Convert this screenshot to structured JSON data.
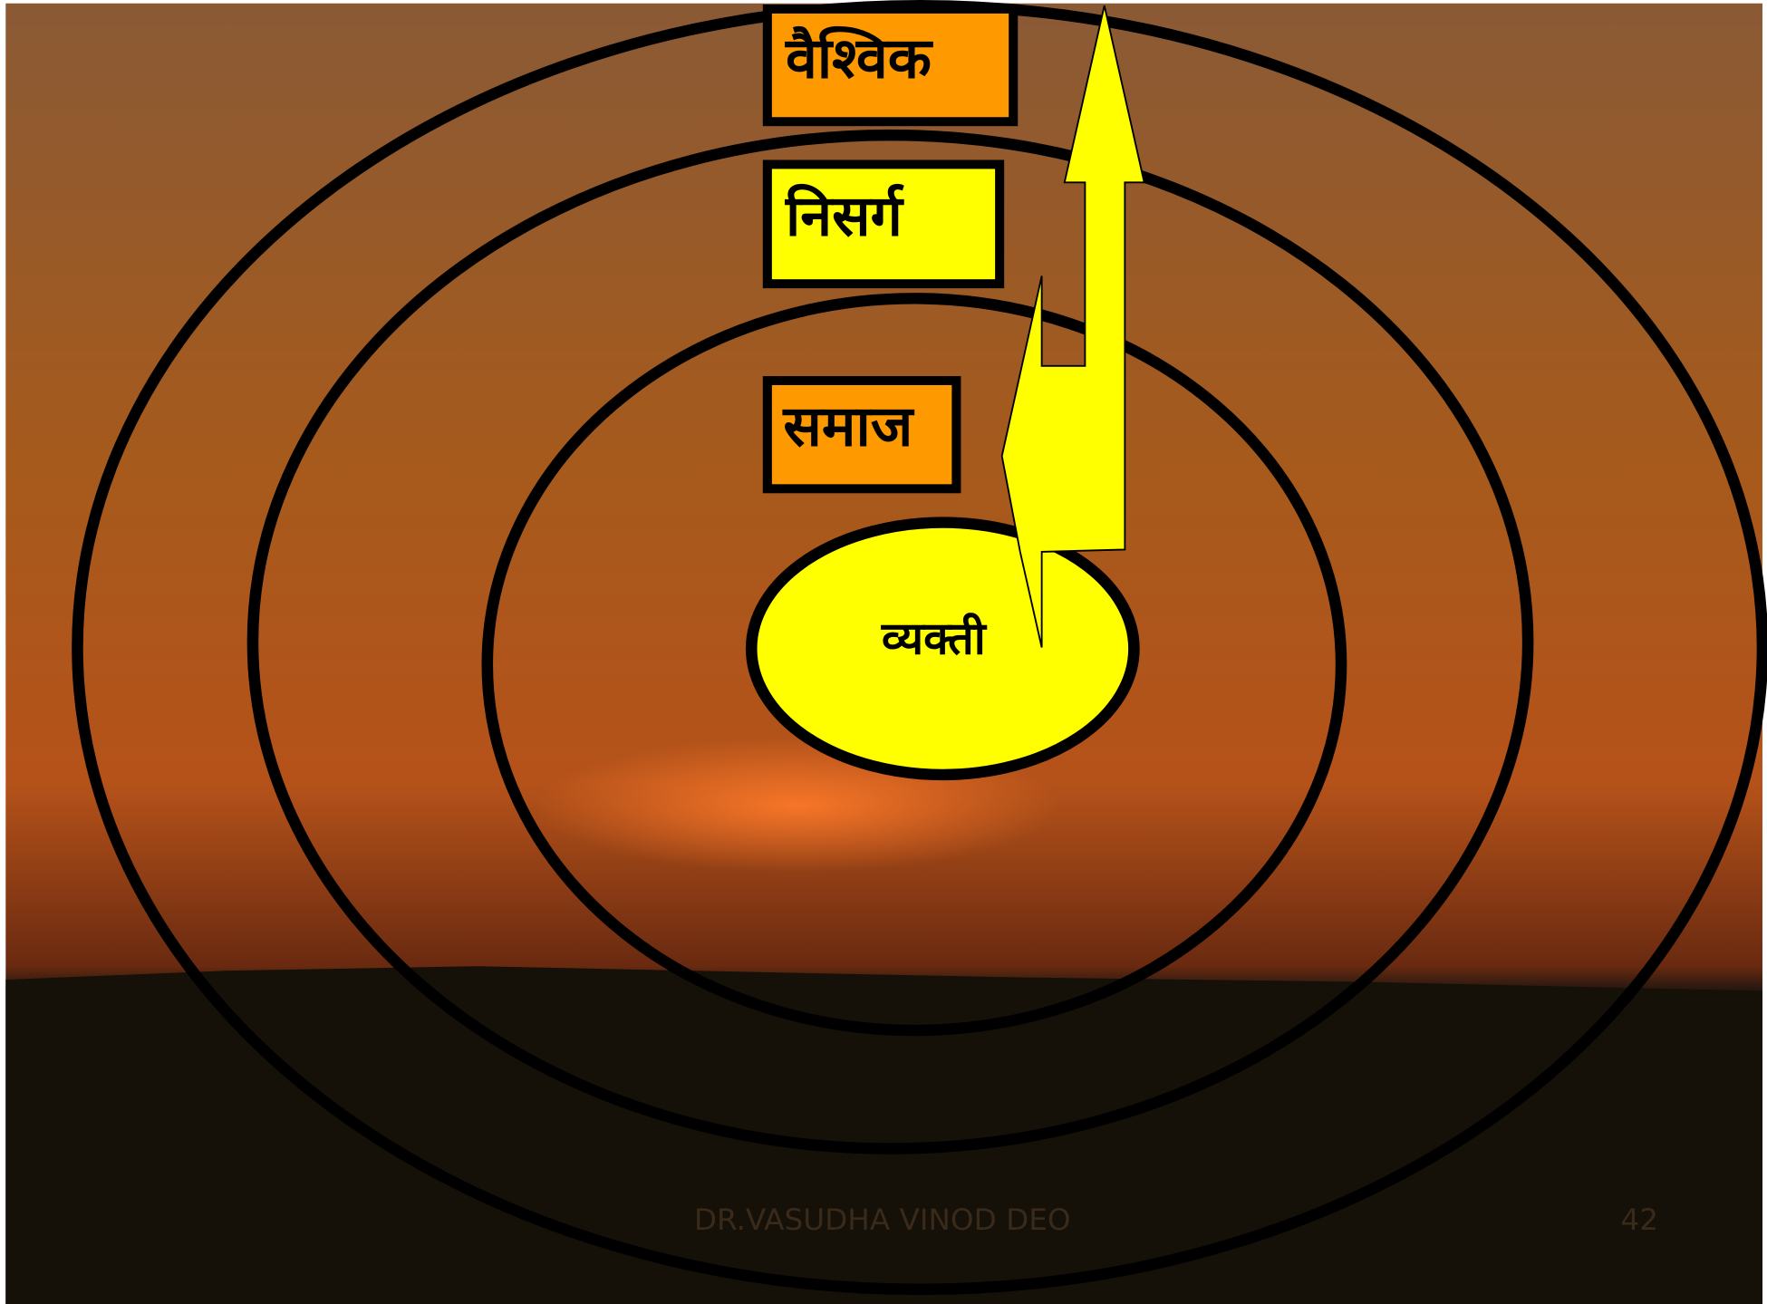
{
  "labels": {
    "global": "वैश्विक",
    "nature": "निसर्ग",
    "society": "समाज",
    "individual": "व्यक्ती"
  },
  "footer": {
    "author": "DR.VASUDHA VINOD DEO",
    "page": "42"
  }
}
